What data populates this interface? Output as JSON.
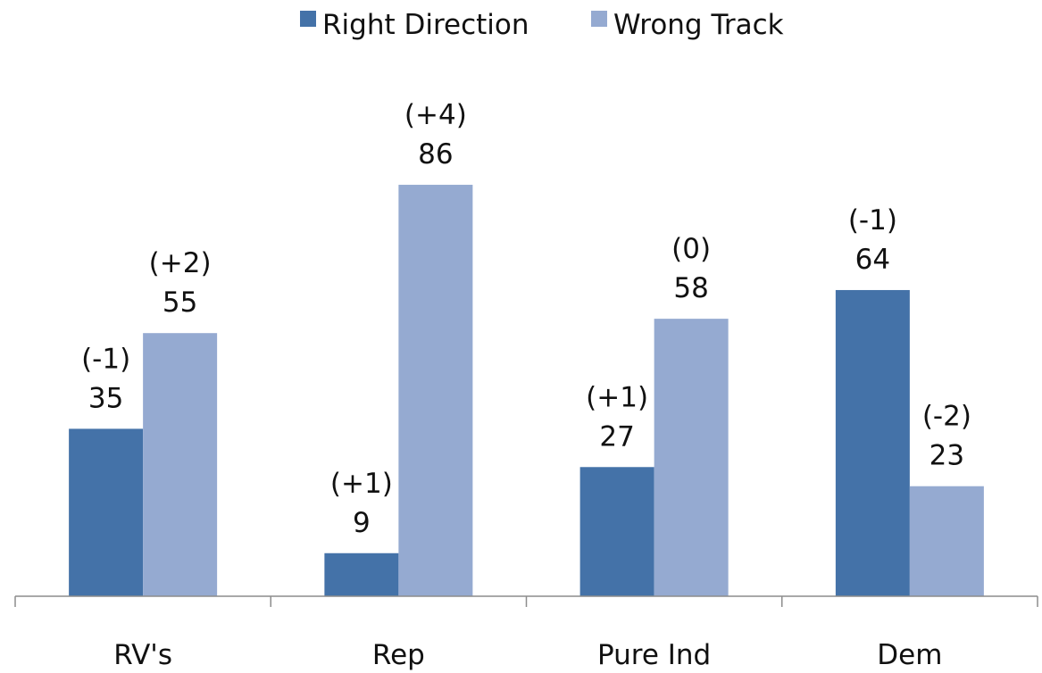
{
  "chart_data": {
    "type": "bar",
    "title": "",
    "xlabel": "",
    "ylabel": "",
    "categories": [
      "RV's",
      "Rep",
      "Pure Ind",
      "Dem"
    ],
    "ylim": [
      0,
      100
    ],
    "grid": false,
    "legend_position": "top-center",
    "series": [
      {
        "name": "Right Direction",
        "color": "#4472a8",
        "values": [
          35,
          9,
          27,
          64
        ],
        "changes": [
          "(-1)",
          "(+1)",
          "(+1)",
          "(-1)"
        ]
      },
      {
        "name": "Wrong Track",
        "color": "#95aad1",
        "values": [
          55,
          86,
          58,
          23
        ],
        "changes": [
          "(+2)",
          "(+4)",
          "(0)",
          "(-2)"
        ]
      }
    ]
  }
}
